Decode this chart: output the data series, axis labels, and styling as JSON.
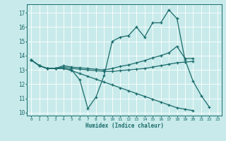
{
  "xlabel": "Humidex (Indice chaleur)",
  "xlim": [
    -0.5,
    23.5
  ],
  "ylim": [
    9.8,
    17.6
  ],
  "yticks": [
    10,
    11,
    12,
    13,
    14,
    15,
    16,
    17
  ],
  "xticks": [
    0,
    1,
    2,
    3,
    4,
    5,
    6,
    7,
    8,
    9,
    10,
    11,
    12,
    13,
    14,
    15,
    16,
    17,
    18,
    19,
    20,
    21,
    22,
    23
  ],
  "background_color": "#c8eaea",
  "line_color": "#1a6b6b",
  "grid_color": "#ffffff",
  "series": [
    {
      "x": [
        0,
        1,
        2,
        3,
        4,
        5,
        6,
        7,
        8,
        9,
        10,
        11,
        12,
        13,
        14,
        15,
        16,
        17,
        18,
        19,
        20,
        21,
        22
      ],
      "y": [
        13.7,
        13.3,
        13.1,
        13.1,
        13.1,
        13.0,
        12.3,
        10.3,
        11.1,
        12.6,
        15.0,
        15.3,
        15.4,
        16.0,
        15.3,
        16.3,
        16.3,
        17.2,
        16.6,
        13.7,
        12.2,
        11.2,
        10.4
      ]
    },
    {
      "x": [
        0,
        1,
        2,
        3,
        4,
        5,
        6,
        7,
        8,
        9,
        10,
        11,
        12,
        13,
        14,
        15,
        16,
        17,
        18,
        19,
        20
      ],
      "y": [
        13.7,
        13.3,
        13.1,
        13.1,
        13.3,
        13.2,
        13.15,
        13.1,
        13.05,
        13.0,
        13.1,
        13.25,
        13.35,
        13.5,
        13.65,
        13.85,
        14.0,
        14.2,
        14.65,
        13.8,
        13.8
      ]
    },
    {
      "x": [
        0,
        1,
        2,
        3,
        4,
        5,
        6,
        7,
        8,
        9,
        10,
        11,
        12,
        13,
        14,
        15,
        16,
        17,
        18,
        19,
        20
      ],
      "y": [
        13.7,
        13.3,
        13.1,
        13.1,
        13.2,
        13.1,
        13.05,
        13.0,
        12.95,
        12.9,
        12.9,
        12.95,
        13.0,
        13.05,
        13.1,
        13.2,
        13.3,
        13.4,
        13.5,
        13.55,
        13.6
      ]
    },
    {
      "x": [
        0,
        1,
        2,
        3,
        4,
        5,
        6,
        7,
        8,
        9,
        10,
        11,
        12,
        13,
        14,
        15,
        16,
        17,
        18,
        19,
        20
      ],
      "y": [
        13.7,
        13.3,
        13.1,
        13.1,
        13.1,
        12.95,
        12.75,
        12.55,
        12.35,
        12.15,
        11.95,
        11.75,
        11.55,
        11.35,
        11.15,
        10.95,
        10.75,
        10.55,
        10.35,
        10.25,
        10.15
      ]
    }
  ]
}
